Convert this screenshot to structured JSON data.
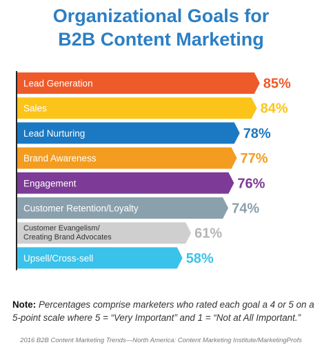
{
  "title_line1": "Organizational Goals for",
  "title_line2": "B2B Content Marketing",
  "chart_data": {
    "type": "bar",
    "orientation": "horizontal",
    "categories": [
      [
        "Lead Generation"
      ],
      [
        "Sales"
      ],
      [
        "Lead Nurturing"
      ],
      [
        "Brand Awareness"
      ],
      [
        "Engagement"
      ],
      [
        "Customer Retention/Loyalty"
      ],
      [
        "Customer Evangelism/",
        "Creating Brand Advocates"
      ],
      [
        "Upsell/Cross-sell"
      ]
    ],
    "values": [
      85,
      84,
      78,
      77,
      76,
      74,
      61,
      58
    ],
    "value_labels": [
      "85%",
      "84%",
      "78%",
      "77%",
      "76%",
      "74%",
      "61%",
      "58%"
    ],
    "colors": [
      "#ee5a2a",
      "#fcc419",
      "#1b78c2",
      "#f39c1f",
      "#7d3a96",
      "#8aa0ad",
      "#cfcfcf",
      "#39c2ea"
    ],
    "label_colors": [
      "#ffffff",
      "#ffffff",
      "#ffffff",
      "#ffffff",
      "#ffffff",
      "#ffffff",
      "#333333",
      "#ffffff"
    ],
    "value_colors": [
      "#ee5a2a",
      "#fcc419",
      "#1b78c2",
      "#f39c1f",
      "#7d3a96",
      "#8aa0ad",
      "#b5b5b5",
      "#39c2ea"
    ],
    "title": "Organizational Goals for B2B Content Marketing",
    "xlabel": "",
    "ylabel": ""
  },
  "note": {
    "label": "Note:",
    "text": " Percentages comprise marketers who rated each goal a 4 or 5 on a 5-point scale where 5 = “Very Important” and 1 = “Not at All Important.”"
  },
  "source": "2016 B2B Content Marketing Trends—North America: Content Marketing Institute/MarketingProfs"
}
